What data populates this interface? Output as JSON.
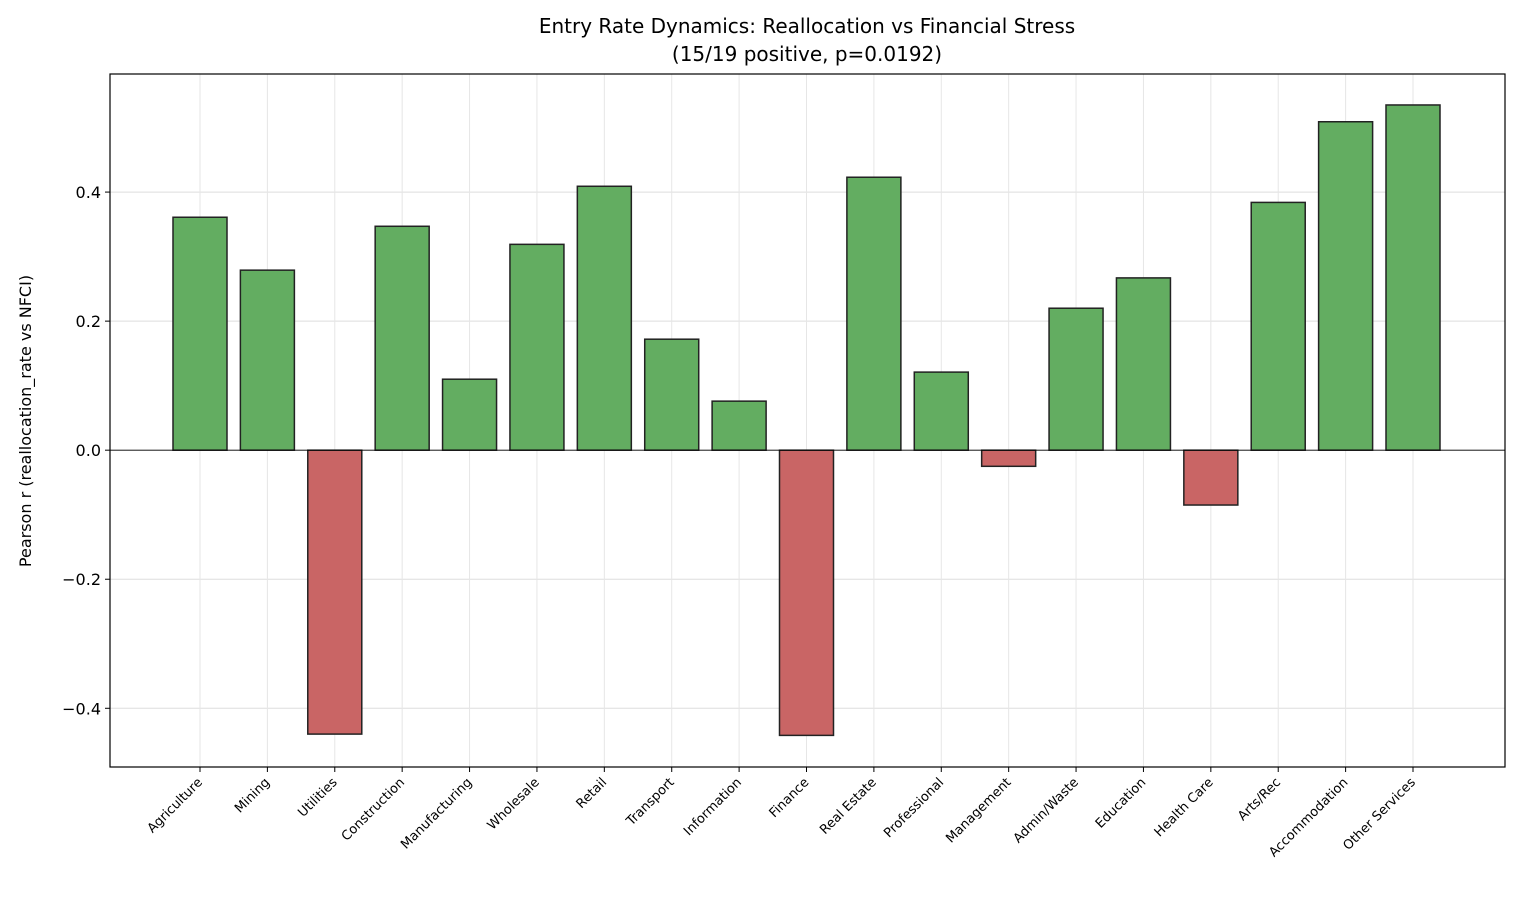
{
  "chart_data": {
    "type": "bar",
    "title": "Entry Rate Dynamics: Reallocation vs Financial Stress",
    "subtitle": "(15/19 positive, p=0.0192)",
    "xlabel": "",
    "ylabel": "Pearson r (reallocation_rate vs NFCI)",
    "categories": [
      "Agriculture",
      "Mining",
      "Utilities",
      "Construction",
      "Manufacturing",
      "Wholesale",
      "Retail",
      "Transport",
      "Information",
      "Finance",
      "Real Estate",
      "Professional",
      "Management",
      "Admin/Waste",
      "Education",
      "Health Care",
      "Arts/Rec",
      "Accommodation",
      "Other Services"
    ],
    "values": [
      0.361,
      0.279,
      -0.44,
      0.347,
      0.11,
      0.319,
      0.409,
      0.172,
      0.076,
      -0.442,
      0.423,
      0.121,
      -0.025,
      0.22,
      0.267,
      -0.085,
      0.384,
      0.509,
      0.535
    ],
    "ylim": [
      -0.491,
      0.583
    ],
    "yticks": [
      -0.4,
      -0.2,
      0.0,
      0.2,
      0.4
    ],
    "ytick_labels": [
      "−0.4",
      "−0.2",
      "0.0",
      "0.2",
      "0.4"
    ],
    "grid": true,
    "colors": {
      "positive": "#63ad61",
      "negative": "#c96565",
      "edge": "#222222"
    }
  }
}
